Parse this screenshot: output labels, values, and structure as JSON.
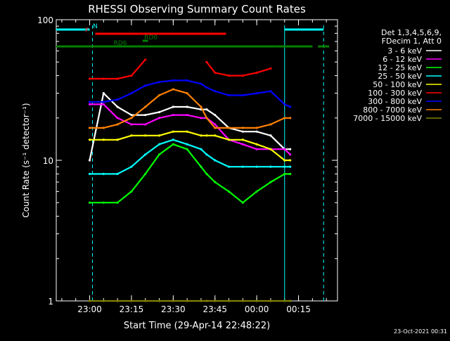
{
  "chart_data": {
    "type": "line",
    "title": "RHESSI Observing Summary Count Rates",
    "xlabel": "Start Time (29-Apr-14 22:48:22)",
    "ylabel": "Count Rate (s⁻¹ detector⁻¹)",
    "y_scale": "log",
    "ylim": [
      1,
      100
    ],
    "xlim": [
      "22:48",
      "00:29"
    ],
    "x_ticks": [
      "23:00",
      "23:15",
      "23:30",
      "23:45",
      "00:00",
      "00:15"
    ],
    "y_ticks": [
      "1",
      "10",
      "100"
    ],
    "footer_date": "23-Oct-2021 00:31",
    "legend": {
      "position": "right",
      "header": [
        "Det 1,3,4,5,6,9,",
        "FDecim 1, Att 0"
      ]
    },
    "flags": [
      {
        "label": "N",
        "color": "#00ffff",
        "segments": [
          [
            "22:48",
            "23:00"
          ],
          [
            "00:10",
            "00:24"
          ]
        ]
      },
      {
        "label": "F",
        "color": "#ff0000",
        "segments": [
          [
            "23:02",
            "23:49"
          ]
        ]
      },
      {
        "label": "RD0",
        "color": "#008000",
        "segments": [
          [
            "23:19",
            "23:21"
          ]
        ]
      },
      {
        "label": "RD6",
        "color": "#008000",
        "segments": [
          [
            "22:48",
            "23:41"
          ],
          [
            "23:41",
            "00:07"
          ],
          [
            "00:07",
            "00:20"
          ],
          [
            "00:22",
            "00:26"
          ]
        ]
      }
    ],
    "markers": [
      {
        "color": "#00ffff",
        "style": "solid",
        "x": "00:10"
      },
      {
        "color": "#00ffff",
        "style": "dashed",
        "x": "23:01"
      },
      {
        "color": "#00ffff",
        "style": "dashed",
        "x": "00:24"
      }
    ],
    "x": [
      "23:00",
      "23:05",
      "23:10",
      "23:15",
      "23:20",
      "23:25",
      "23:30",
      "23:35",
      "23:40",
      "23:42",
      "23:45",
      "23:50",
      "23:55",
      "00:00",
      "00:05",
      "00:10",
      "00:12"
    ],
    "series": [
      {
        "name": "3 - 6 keV",
        "color": "#ffffff",
        "values": [
          10,
          30,
          24,
          21,
          21,
          22,
          24,
          24,
          23,
          23,
          21,
          17,
          16,
          16,
          15,
          12,
          12
        ]
      },
      {
        "name": "6 - 12 keV",
        "color": "#ff00ff",
        "values": [
          25,
          25,
          20,
          18,
          18,
          20,
          21,
          21,
          20,
          20,
          18,
          14,
          13,
          12,
          12,
          12,
          11
        ]
      },
      {
        "name": "12 - 25 keV",
        "color": "#00ff00",
        "values": [
          5,
          5,
          5,
          6,
          8,
          11,
          13,
          12,
          9,
          8,
          7,
          6,
          5,
          6,
          7,
          8,
          8
        ]
      },
      {
        "name": "25 - 50 keV",
        "color": "#00ffff",
        "values": [
          8,
          8,
          8,
          9,
          11,
          13,
          14,
          13,
          12,
          11,
          10,
          9,
          9,
          9,
          9,
          9,
          9
        ]
      },
      {
        "name": "50 - 100 keV",
        "color": "#ffff00",
        "values": [
          14,
          14,
          14,
          15,
          15,
          15,
          16,
          16,
          15,
          15,
          15,
          14,
          14,
          13,
          12,
          10,
          10
        ]
      },
      {
        "name": "100 - 300 keV",
        "color": "#ff0000",
        "values": [
          38,
          38,
          38,
          40,
          52,
          0,
          0,
          0,
          0,
          50,
          42,
          40,
          40,
          42,
          45,
          0,
          0
        ]
      },
      {
        "name": "300 - 800 keV",
        "color": "#0000ff",
        "values": [
          26,
          26,
          27,
          30,
          34,
          36,
          37,
          37,
          35,
          33,
          31,
          29,
          29,
          30,
          31,
          25,
          24
        ]
      },
      {
        "name": "800 - 7000 keV",
        "color": "#ff8000",
        "values": [
          17,
          17,
          18,
          20,
          24,
          29,
          32,
          30,
          24,
          20,
          17,
          17,
          17,
          17,
          18,
          20,
          20
        ]
      },
      {
        "name": "7000 - 15000 keV",
        "color": "#808000",
        "values": [
          1,
          1,
          1,
          1,
          1,
          1,
          1,
          1,
          1,
          1,
          1,
          1,
          1,
          1,
          1,
          1,
          1
        ]
      }
    ]
  }
}
